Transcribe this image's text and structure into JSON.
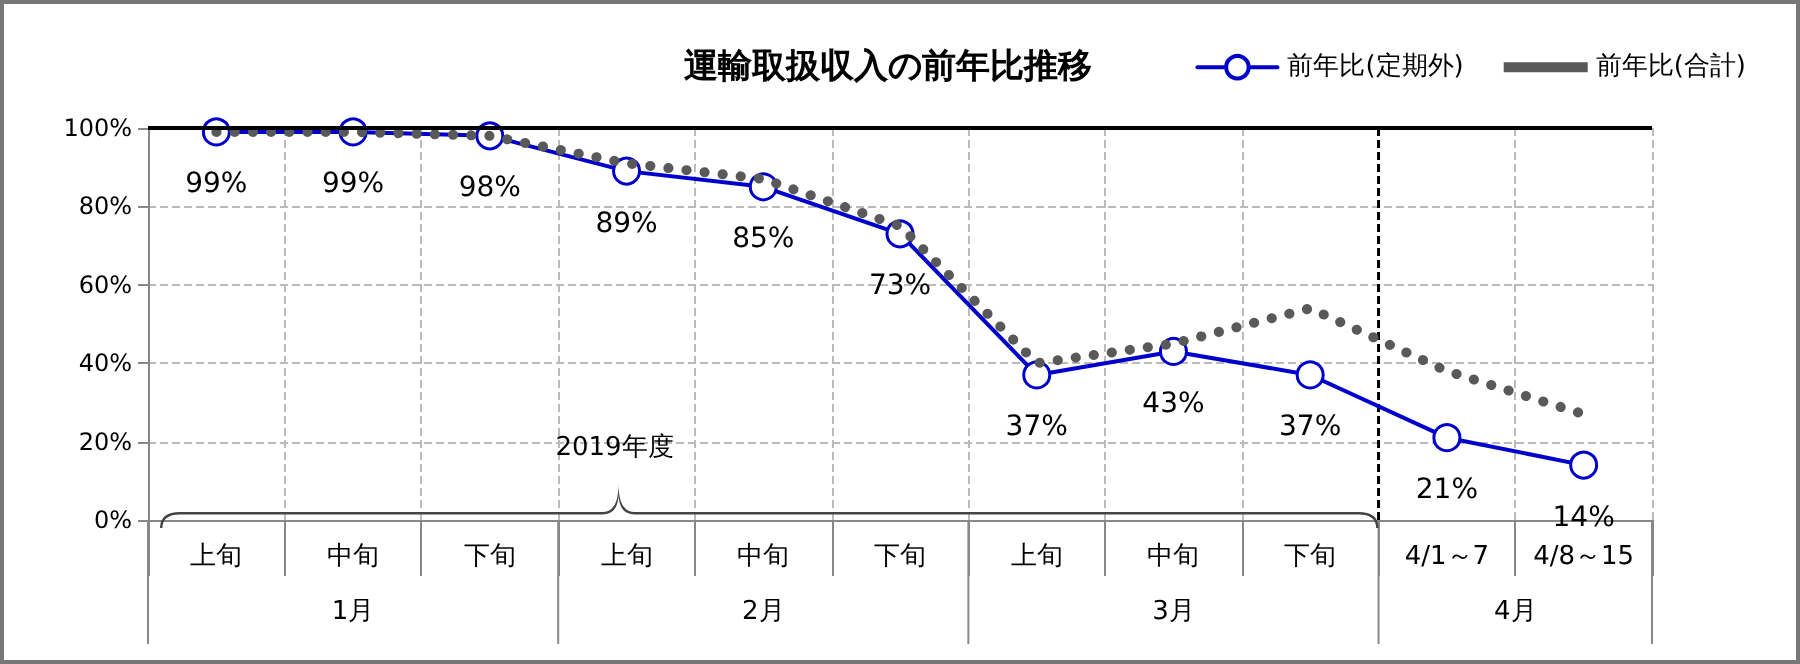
{
  "chart_data": {
    "type": "line",
    "title": "運輸取扱収入の前年比推移",
    "categories": [
      "上旬",
      "中旬",
      "下旬",
      "上旬",
      "中旬",
      "下旬",
      "上旬",
      "中旬",
      "下旬",
      "4/1～7",
      "4/8～15"
    ],
    "series": [
      {
        "name": "前年比(定期外)",
        "color": "#0000cc",
        "marker": "circle",
        "line_style": "solid",
        "values": [
          99,
          99,
          98,
          89,
          85,
          73,
          37,
          43,
          37,
          21,
          14
        ],
        "value_labels": [
          "99%",
          "99%",
          "98%",
          "89%",
          "85%",
          "73%",
          "37%",
          "43%",
          "37%",
          "21%",
          "14%"
        ]
      },
      {
        "name": "前年比(合計)",
        "color": "#595959",
        "marker": "none",
        "line_style": "dotted",
        "values": [
          99,
          99,
          98,
          91,
          87,
          75,
          40,
          45,
          54,
          38,
          27
        ]
      }
    ],
    "ylim": [
      0,
      100
    ],
    "yticks": [
      {
        "value": 0,
        "label": "0%"
      },
      {
        "value": 20,
        "label": "20%"
      },
      {
        "value": 40,
        "label": "40%"
      },
      {
        "value": 60,
        "label": "60%"
      },
      {
        "value": 80,
        "label": "80%"
      },
      {
        "value": 100,
        "label": "100%"
      }
    ],
    "ref_lines": [
      {
        "axis": "y",
        "value": 100,
        "color": "#000000",
        "line_style": "solid"
      },
      {
        "axis": "x",
        "value": "4/1～7",
        "color": "#000000",
        "line_style": "dashed"
      }
    ],
    "annotations": [
      "1月",
      "2月",
      "3月",
      "4月",
      "2019年度"
    ],
    "grid": true,
    "legend": "top right"
  }
}
